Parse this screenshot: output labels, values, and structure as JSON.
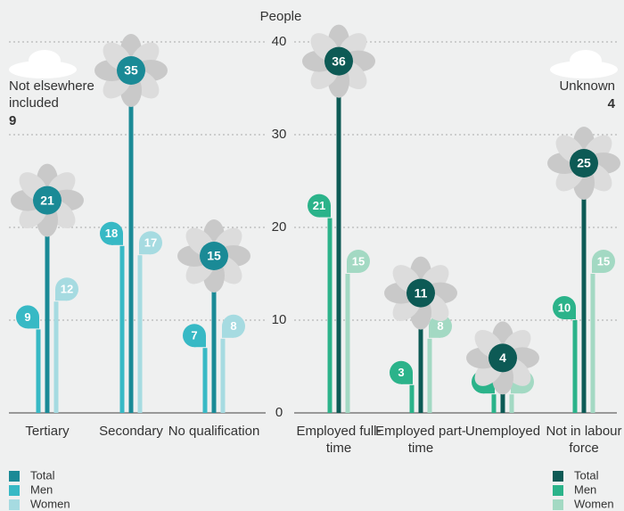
{
  "chart_data": [
    {
      "type": "bar",
      "axis_label": "People",
      "categories": [
        "Tertiary",
        "Secondary",
        "No qualification"
      ],
      "series": [
        {
          "name": "Total",
          "color": "#1a8a96",
          "values": [
            21,
            35,
            15
          ]
        },
        {
          "name": "Men",
          "color": "#37b9c5",
          "values": [
            9,
            18,
            7
          ]
        },
        {
          "name": "Women",
          "color": "#a6dbe1",
          "values": [
            12,
            17,
            8
          ]
        }
      ],
      "annotation": {
        "label": "Not elsewhere included",
        "value": 9
      },
      "ylim": [
        0,
        40
      ],
      "yticks": [
        0,
        10,
        20,
        30,
        40
      ],
      "grid": true
    },
    {
      "type": "bar",
      "categories": [
        "Employed full-time",
        "Employed part-time",
        "Unemployed",
        "Not in labour force"
      ],
      "series": [
        {
          "name": "Total",
          "color": "#0d5a55",
          "values": [
            36,
            11,
            4,
            25
          ]
        },
        {
          "name": "Men",
          "color": "#2bb38a",
          "values": [
            21,
            3,
            2,
            10
          ]
        },
        {
          "name": "Women",
          "color": "#a3d9c3",
          "values": [
            15,
            8,
            2,
            15
          ]
        }
      ],
      "annotation": {
        "label": "Unknown",
        "value": 4
      },
      "ylim": [
        0,
        40
      ]
    }
  ]
}
